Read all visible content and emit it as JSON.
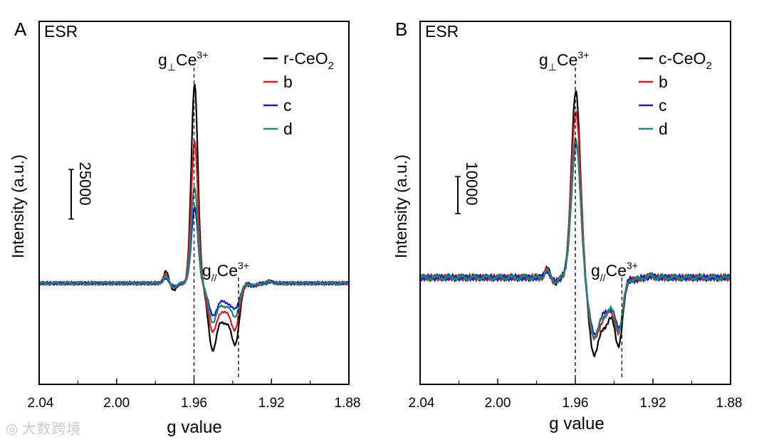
{
  "chart_data": [
    {
      "type": "line",
      "panel_label": "A",
      "title": "ESR",
      "xlabel": "g value",
      "ylabel": "Intensity (a.u.)",
      "xlim": [
        2.04,
        1.88
      ],
      "x_reversed": true,
      "xticks": [
        "2.04",
        "2.00",
        "1.96",
        "1.92",
        "1.88"
      ],
      "scale_bar_label": "25000",
      "scale_bar_value": 25000,
      "annotations": [
        {
          "base": "g",
          "sub": "⊥",
          "tail": "Ce",
          "sup": "3+",
          "g": 1.96
        },
        {
          "base": "g",
          "sub": "//",
          "tail": "Ce",
          "sup": "3+",
          "g": 1.937
        }
      ],
      "series": [
        {
          "name": "r-CeO",
          "name_sub": "2",
          "color": "#000000",
          "peak": 100000,
          "dip1": -31000,
          "dip2": -26000,
          "tail": 6000
        },
        {
          "name": "b",
          "color": "#e8161b",
          "peak": 72000,
          "dip1": -23000,
          "dip2": -20000,
          "tail": 4500
        },
        {
          "name": "c",
          "color": "#1b1bd0",
          "peak": 38000,
          "dip1": -15000,
          "dip2": -11000,
          "tail": 3000
        },
        {
          "name": "d",
          "color": "#1a8a78",
          "peak": 48000,
          "dip1": -18000,
          "dip2": -14000,
          "tail": 3500
        }
      ]
    },
    {
      "type": "line",
      "panel_label": "B",
      "title": "ESR",
      "xlabel": "g value",
      "ylabel": "Intensity (a.u.)",
      "xlim": [
        2.04,
        1.88
      ],
      "x_reversed": true,
      "xticks": [
        "2.04",
        "2.00",
        "1.96",
        "1.92",
        "1.88"
      ],
      "scale_bar_label": "10000",
      "scale_bar_value": 10000,
      "annotations": [
        {
          "base": "g",
          "sub": "⊥",
          "tail": "Ce",
          "sup": "3+",
          "g": 1.96
        },
        {
          "base": "g",
          "sub": "//",
          "tail": "Ce",
          "sup": "3+",
          "g": 1.936
        }
      ],
      "series": [
        {
          "name": "c-CeO",
          "name_sub": "2",
          "color": "#000000",
          "peak": 50000,
          "dip1": -19000,
          "dip2": -16500,
          "tail": 2500
        },
        {
          "name": "b",
          "color": "#e8161b",
          "peak": 45000,
          "dip1": -15500,
          "dip2": -14000,
          "tail": 2200
        },
        {
          "name": "c",
          "color": "#1b1bd0",
          "peak": 36000,
          "dip1": -14000,
          "dip2": -12500,
          "tail": 2000
        },
        {
          "name": "d",
          "color": "#1a8a78",
          "peak": 37000,
          "dip1": -14500,
          "dip2": -13000,
          "tail": 2000
        }
      ]
    }
  ],
  "watermark": {
    "text": "大数跨境"
  }
}
